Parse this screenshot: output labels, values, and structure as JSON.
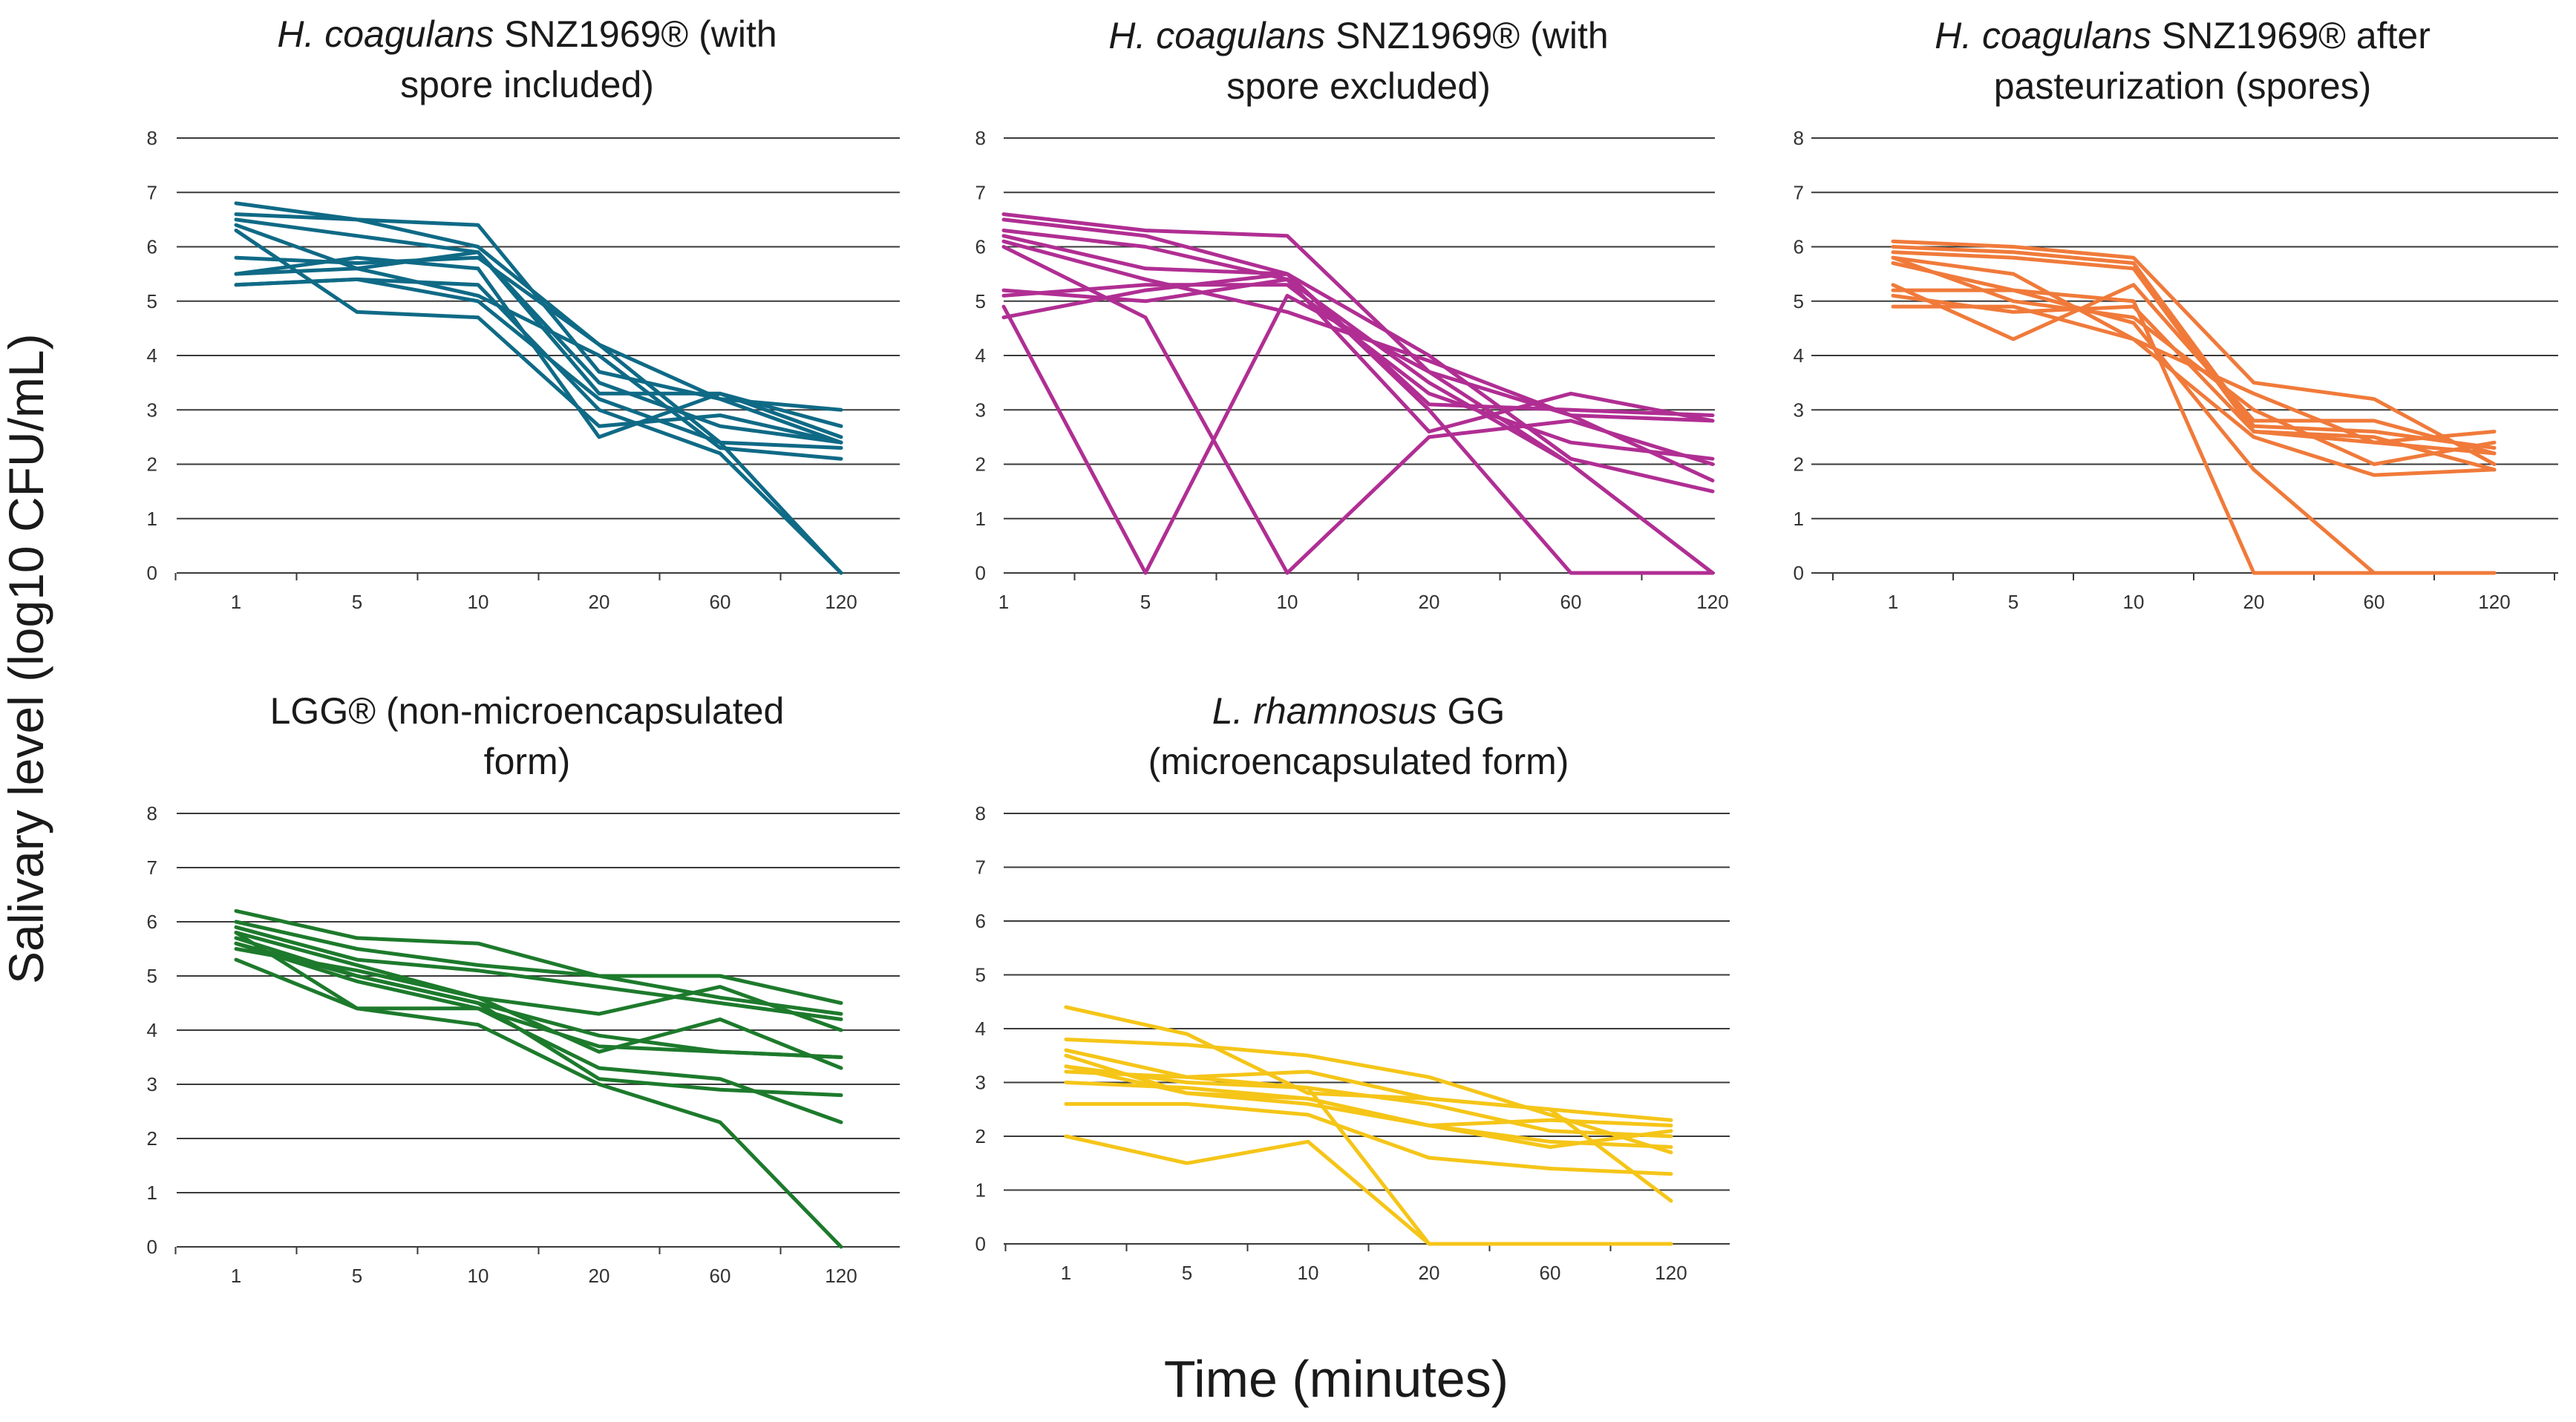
{
  "figure": {
    "y_axis_label": "Salivary level (log10 CFU/mL)",
    "x_axis_label": "Time (minutes)"
  },
  "chart_data": [
    {
      "type": "line",
      "title": "H. coagulans SNZ1969® (with spore included)",
      "title_line1": "H. coagulans SNZ1969® (with",
      "title_line2": "spore included)",
      "color": "#0f6a86",
      "categories": [
        "1",
        "5",
        "10",
        "20",
        "60",
        "120"
      ],
      "yticks": [
        "0",
        "1",
        "2",
        "3",
        "4",
        "5",
        "6",
        "7",
        "8"
      ],
      "ylim": [
        0,
        8
      ],
      "series": [
        {
          "values": [
            6.8,
            6.5,
            6.4,
            3.7,
            3.2,
            3.0
          ]
        },
        {
          "values": [
            6.6,
            6.5,
            6.0,
            4.2,
            3.2,
            2.4
          ]
        },
        {
          "values": [
            6.5,
            6.2,
            5.9,
            3.3,
            3.3,
            2.7
          ]
        },
        {
          "values": [
            6.4,
            5.6,
            5.9,
            3.5,
            2.7,
            2.4
          ]
        },
        {
          "values": [
            5.8,
            5.7,
            5.8,
            4.2,
            2.4,
            0.0
          ]
        },
        {
          "values": [
            5.5,
            5.8,
            5.6,
            2.5,
            3.3,
            2.5
          ]
        },
        {
          "values": [
            5.3,
            5.4,
            5.3,
            3.0,
            2.2,
            0.0
          ]
        },
        {
          "values": [
            5.5,
            5.6,
            5.1,
            4.0,
            2.3,
            2.1
          ]
        },
        {
          "values": [
            6.3,
            4.8,
            4.7,
            2.7,
            2.9,
            2.4
          ]
        },
        {
          "values": [
            5.3,
            5.4,
            5.0,
            3.2,
            2.4,
            2.3
          ]
        }
      ]
    },
    {
      "type": "line",
      "title": "H. coagulans SNZ1969® (with spore excluded)",
      "title_line1": "H. coagulans SNZ1969® (with",
      "title_line2": "spore excluded)",
      "color": "#b02e93",
      "categories": [
        "1",
        "5",
        "10",
        "20",
        "60",
        "120"
      ],
      "yticks": [
        "0",
        "1",
        "2",
        "3",
        "4",
        "5",
        "6",
        "7",
        "8"
      ],
      "ylim": [
        0,
        8
      ],
      "series": [
        {
          "values": [
            6.6,
            6.3,
            6.2,
            3.7,
            2.9,
            2.8
          ]
        },
        {
          "values": [
            6.5,
            6.2,
            5.5,
            4.0,
            2.1,
            1.5
          ]
        },
        {
          "values": [
            6.3,
            6.0,
            5.4,
            3.5,
            2.0,
            0.0
          ]
        },
        {
          "values": [
            6.2,
            5.6,
            5.5,
            3.1,
            3.0,
            2.9
          ]
        },
        {
          "values": [
            6.1,
            5.4,
            4.8,
            3.9,
            2.9,
            1.7
          ]
        },
        {
          "values": [
            5.2,
            5.0,
            5.4,
            2.6,
            3.3,
            2.8
          ]
        },
        {
          "values": [
            5.1,
            5.3,
            5.3,
            3.3,
            2.4,
            2.1
          ]
        },
        {
          "values": [
            4.7,
            5.2,
            5.5,
            3.0,
            0.0,
            0.0
          ]
        },
        {
          "values": [
            4.9,
            0.0,
            5.1,
            3.7,
            2.0,
            0.0
          ]
        },
        {
          "values": [
            6.0,
            4.7,
            0.0,
            2.5,
            2.8,
            2.0
          ]
        }
      ]
    },
    {
      "type": "line",
      "title": "H. coagulans SNZ1969® after pasteurization (spores)",
      "title_line1": "H. coagulans SNZ1969® after",
      "title_line2": "pasteurization (spores)",
      "color": "#f07a3a",
      "categories": [
        "1",
        "5",
        "10",
        "20",
        "60",
        "120"
      ],
      "yticks": [
        "0",
        "1",
        "2",
        "3",
        "4",
        "5",
        "6",
        "7",
        "8"
      ],
      "ylim": [
        0,
        8
      ],
      "series": [
        {
          "values": [
            6.1,
            6.0,
            5.8,
            3.5,
            3.2,
            2.0
          ]
        },
        {
          "values": [
            6.0,
            5.9,
            5.7,
            2.7,
            2.6,
            2.3
          ]
        },
        {
          "values": [
            5.9,
            5.8,
            5.6,
            2.6,
            2.4,
            2.2
          ]
        },
        {
          "values": [
            5.8,
            5.5,
            4.3,
            3.3,
            2.4,
            2.6
          ]
        },
        {
          "values": [
            5.7,
            5.2,
            5.0,
            0.0,
            0.0,
            0.0
          ]
        },
        {
          "values": [
            5.3,
            4.3,
            5.3,
            2.8,
            2.8,
            2.2
          ]
        },
        {
          "values": [
            5.2,
            5.2,
            4.6,
            1.9,
            0.0,
            0.0
          ]
        },
        {
          "values": [
            4.9,
            4.9,
            4.3,
            2.5,
            1.8,
            1.9
          ]
        },
        {
          "values": [
            5.8,
            5.0,
            4.7,
            3.0,
            2.0,
            2.4
          ]
        },
        {
          "values": [
            5.1,
            4.8,
            4.9,
            2.6,
            2.5,
            1.9
          ]
        }
      ]
    },
    {
      "type": "line",
      "title": "LGG® (non-microencapsulated form)",
      "title_line1": "LGG® (non-microencapsulated",
      "title_line2": "form)",
      "color": "#1d7a2c",
      "categories": [
        "1",
        "5",
        "10",
        "20",
        "60",
        "120"
      ],
      "yticks": [
        "0",
        "1",
        "2",
        "3",
        "4",
        "5",
        "6",
        "7",
        "8"
      ],
      "ylim": [
        0,
        8
      ],
      "series": [
        {
          "values": [
            6.2,
            5.7,
            5.6,
            5.0,
            5.0,
            4.5
          ]
        },
        {
          "values": [
            6.0,
            5.5,
            5.2,
            5.0,
            4.6,
            4.3
          ]
        },
        {
          "values": [
            5.9,
            5.3,
            5.1,
            4.8,
            4.5,
            4.2
          ]
        },
        {
          "values": [
            5.8,
            5.2,
            4.6,
            4.3,
            4.8,
            4.0
          ]
        },
        {
          "values": [
            5.7,
            5.0,
            4.5,
            3.9,
            3.6,
            3.5
          ]
        },
        {
          "values": [
            5.6,
            4.9,
            4.4,
            3.7,
            3.6,
            3.5
          ]
        },
        {
          "values": [
            5.5,
            5.1,
            4.6,
            3.6,
            4.2,
            3.3
          ]
        },
        {
          "values": [
            5.3,
            4.4,
            4.4,
            3.3,
            3.1,
            2.3
          ]
        },
        {
          "values": [
            5.8,
            4.4,
            4.1,
            3.0,
            2.3,
            0.0
          ]
        },
        {
          "values": [
            5.6,
            5.0,
            4.5,
            3.1,
            2.9,
            2.8
          ]
        }
      ]
    },
    {
      "type": "line",
      "title": "L. rhamnosus GG (microencapsulated form)",
      "title_line1": "L. rhamnosus GG",
      "title_line2": "(microencapsulated form)",
      "color": "#f5c518",
      "categories": [
        "1",
        "5",
        "10",
        "20",
        "60",
        "120"
      ],
      "yticks": [
        "0",
        "1",
        "2",
        "3",
        "4",
        "5",
        "6",
        "7",
        "8"
      ],
      "ylim": [
        0,
        8
      ],
      "series": [
        {
          "values": [
            4.4,
            3.9,
            2.8,
            2.7,
            2.5,
            2.3
          ]
        },
        {
          "values": [
            3.8,
            3.7,
            3.5,
            3.1,
            2.4,
            1.7
          ]
        },
        {
          "values": [
            3.6,
            3.1,
            2.9,
            2.6,
            2.1,
            2.0
          ]
        },
        {
          "values": [
            3.5,
            2.8,
            2.7,
            2.2,
            1.9,
            1.8
          ]
        },
        {
          "values": [
            3.3,
            3.0,
            2.9,
            0.0,
            0.0,
            0.0
          ]
        },
        {
          "values": [
            3.2,
            3.1,
            3.2,
            2.7,
            2.5,
            0.8
          ]
        },
        {
          "values": [
            3.0,
            2.9,
            2.7,
            2.2,
            1.8,
            2.1
          ]
        },
        {
          "values": [
            2.6,
            2.6,
            2.4,
            1.6,
            1.4,
            1.3
          ]
        },
        {
          "values": [
            2.0,
            1.5,
            1.9,
            0.0,
            0.0,
            0.0
          ]
        },
        {
          "values": [
            3.3,
            2.8,
            2.6,
            2.2,
            2.3,
            2.2
          ]
        }
      ]
    }
  ]
}
